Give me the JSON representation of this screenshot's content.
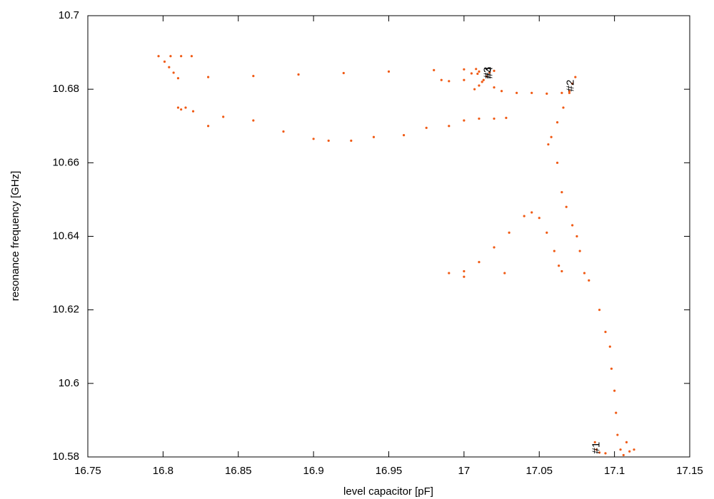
{
  "chart_data": {
    "type": "scatter",
    "xlabel": "level capacitor [pF]",
    "ylabel": "resonance frequency [GHz]",
    "xlim": [
      16.75,
      17.15
    ],
    "xticks": [
      16.75,
      16.8,
      16.85,
      16.9,
      16.95,
      17,
      17.05,
      17.1,
      17.15
    ],
    "ylim": [
      10.58,
      10.7
    ],
    "yticks": [
      10.58,
      10.6,
      10.62,
      10.64,
      10.66,
      10.68,
      10.7
    ],
    "series": [
      {
        "color": "#f05a14",
        "x": [
          16.797,
          16.805,
          16.812,
          16.819,
          16.801,
          16.804,
          16.807,
          16.81,
          16.83,
          16.86,
          16.89,
          16.92,
          16.95,
          16.98,
          17.0,
          17.008,
          17.01,
          17.009,
          17.005,
          17.013,
          17.015,
          17.017,
          17.02,
          17.012,
          17.01,
          17.007,
          17.02,
          17.025,
          17.035,
          17.045,
          17.055,
          17.065,
          17.07,
          17.072,
          17.074,
          17.07,
          17.066,
          17.062,
          17.058,
          17.056,
          17.062,
          17.065,
          17.068,
          17.072,
          17.075,
          17.077,
          17.08,
          17.083,
          17.09,
          17.094,
          17.097,
          17.098,
          17.1,
          17.101,
          17.102,
          17.104,
          17.106,
          17.11,
          17.113,
          17.108,
          17.087,
          17.088,
          17.09,
          17.094,
          16.81,
          16.815,
          16.82,
          16.812,
          16.83,
          16.84,
          16.86,
          16.88,
          16.9,
          16.91,
          16.925,
          16.94,
          16.96,
          16.975,
          16.99,
          17.0,
          17.01,
          17.02,
          17.028,
          16.985,
          16.99,
          17.0,
          16.99,
          17.0,
          17.01,
          17.02,
          17.03,
          17.04,
          17.045,
          17.05,
          17.055,
          17.06,
          17.063,
          17.065,
          17.0,
          17.027
        ],
        "y": [
          10.689,
          10.689,
          10.689,
          10.689,
          10.6875,
          10.686,
          10.6845,
          10.683,
          10.6833,
          10.6836,
          10.684,
          10.6844,
          10.6848,
          10.6852,
          10.6854,
          10.6855,
          10.6848,
          10.6842,
          10.6843,
          10.6825,
          10.6835,
          10.6845,
          10.685,
          10.682,
          10.681,
          10.68,
          10.6805,
          10.6795,
          10.679,
          10.679,
          10.6788,
          10.679,
          10.6795,
          10.6815,
          10.6833,
          10.679,
          10.675,
          10.671,
          10.667,
          10.665,
          10.66,
          10.652,
          10.648,
          10.643,
          10.64,
          10.636,
          10.63,
          10.628,
          10.62,
          10.614,
          10.61,
          10.604,
          10.598,
          10.592,
          10.586,
          10.582,
          10.5805,
          10.5815,
          10.582,
          10.584,
          10.584,
          10.582,
          10.5812,
          10.581,
          10.675,
          10.675,
          10.674,
          10.6745,
          10.67,
          10.6725,
          10.6715,
          10.6685,
          10.6665,
          10.666,
          10.666,
          10.667,
          10.6675,
          10.6695,
          10.67,
          10.6715,
          10.672,
          10.672,
          10.6722,
          10.6825,
          10.6822,
          10.6825,
          10.63,
          10.6305,
          10.633,
          10.637,
          10.641,
          10.6455,
          10.6465,
          10.645,
          10.641,
          10.636,
          10.632,
          10.6305,
          10.629,
          10.63
        ]
      }
    ],
    "annotations": [
      {
        "text": "#1",
        "x": 17.088,
        "y": 10.5825
      },
      {
        "text": "#2",
        "x": 17.071,
        "y": 10.681
      },
      {
        "text": "#3",
        "x": 17.016,
        "y": 10.6845
      },
      {
        "text": "#4",
        "x": 17.017,
        "y": 10.6845
      }
    ]
  }
}
